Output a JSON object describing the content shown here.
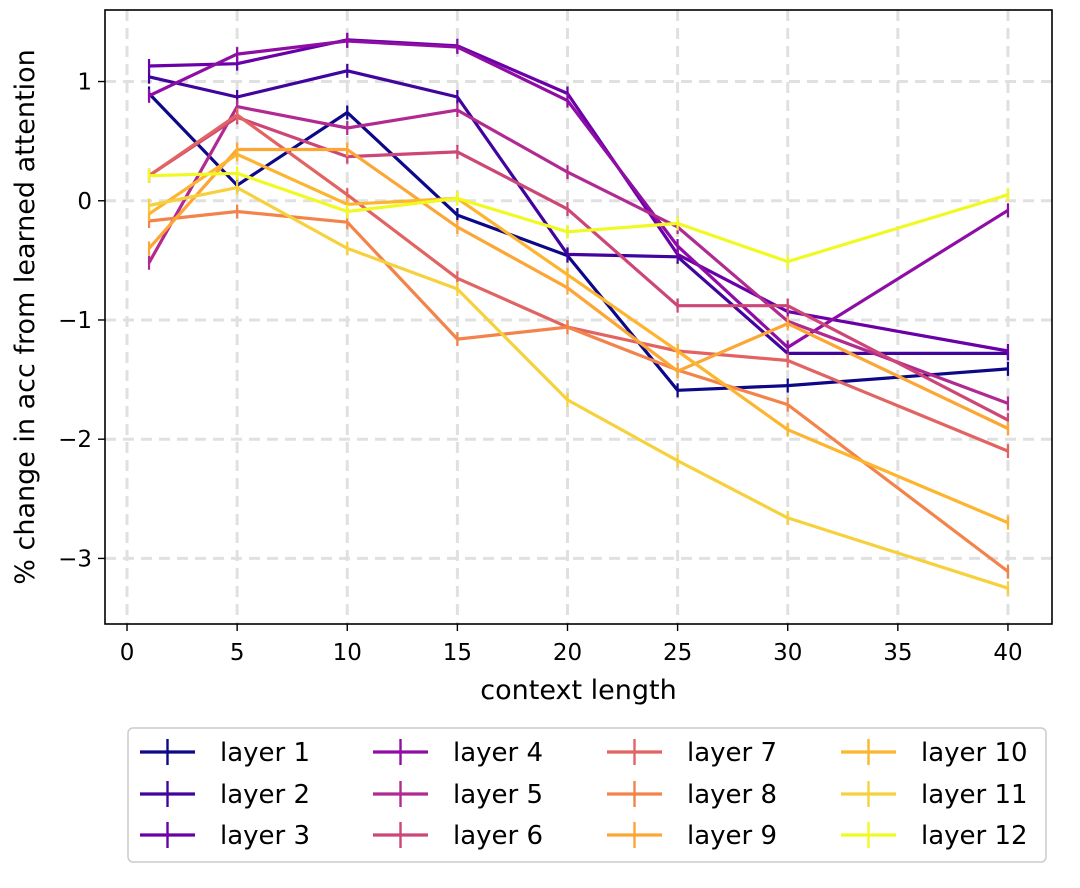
{
  "chart_data": {
    "type": "line",
    "title": "",
    "xlabel": "context length",
    "ylabel": "% change in acc from learned attention",
    "xlim": [
      -1,
      42
    ],
    "ylim": [
      -3.55,
      1.6
    ],
    "xticks": [
      0,
      5,
      10,
      15,
      20,
      25,
      30,
      35,
      40
    ],
    "yticks": [
      1,
      0,
      -1,
      -2,
      -3
    ],
    "ytick_labels": [
      "1",
      "0",
      "−1",
      "−2",
      "−3"
    ],
    "grid": true,
    "legend_position": "below",
    "x": [
      1,
      5,
      10,
      15,
      20,
      25,
      30,
      40
    ],
    "series": [
      {
        "name": "layer 1",
        "color": "#0d0887",
        "values": [
          0.9,
          0.13,
          0.74,
          -0.12,
          -0.46,
          -1.59,
          -1.55,
          -1.41
        ]
      },
      {
        "name": "layer 2",
        "color": "#41049d",
        "values": [
          1.04,
          0.87,
          1.09,
          0.87,
          -0.45,
          -0.47,
          -1.28,
          -1.28
        ]
      },
      {
        "name": "layer 3",
        "color": "#6a00a8",
        "values": [
          1.13,
          1.15,
          1.35,
          1.3,
          0.9,
          -0.45,
          -0.93,
          -1.26
        ]
      },
      {
        "name": "layer 4",
        "color": "#8f0da4",
        "values": [
          0.88,
          1.23,
          1.34,
          1.29,
          0.84,
          -0.38,
          -1.23,
          -0.08
        ]
      },
      {
        "name": "layer 5",
        "color": "#b12a90",
        "values": [
          -0.52,
          0.79,
          0.61,
          0.76,
          0.24,
          -0.22,
          -1.01,
          -1.7
        ]
      },
      {
        "name": "layer 6",
        "color": "#cc4778",
        "values": [
          0.21,
          0.7,
          0.37,
          0.41,
          -0.07,
          -0.88,
          -0.88,
          -1.84
        ]
      },
      {
        "name": "layer 7",
        "color": "#e16462",
        "values": [
          0.21,
          0.72,
          0.05,
          -0.65,
          -1.06,
          -1.26,
          -1.34,
          -2.1
        ]
      },
      {
        "name": "layer 8",
        "color": "#f2844b",
        "values": [
          -0.17,
          -0.09,
          -0.18,
          -1.16,
          -1.06,
          -1.42,
          -1.71,
          -3.11
        ]
      },
      {
        "name": "layer 9",
        "color": "#fca636",
        "values": [
          -0.4,
          0.43,
          0.43,
          -0.22,
          -0.73,
          -1.43,
          -1.03,
          -1.91
        ]
      },
      {
        "name": "layer 10",
        "color": "#fdb42f",
        "values": [
          -0.11,
          0.39,
          -0.03,
          0.02,
          -0.62,
          -1.26,
          -1.92,
          -2.7
        ]
      },
      {
        "name": "layer 11",
        "color": "#f7d13d",
        "values": [
          -0.04,
          0.11,
          -0.4,
          -0.74,
          -1.67,
          -2.18,
          -2.66,
          -3.25
        ]
      },
      {
        "name": "layer 12",
        "color": "#f0f921",
        "values": [
          0.21,
          0.23,
          -0.09,
          0.02,
          -0.26,
          -0.19,
          -0.51,
          0.05
        ]
      }
    ]
  }
}
